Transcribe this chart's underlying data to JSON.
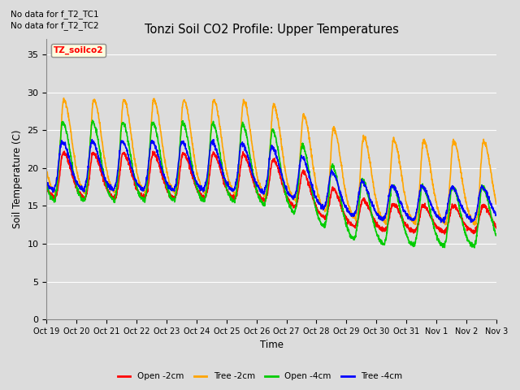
{
  "title": "Tonzi Soil CO2 Profile: Upper Temperatures",
  "ylabel": "Soil Temperature (C)",
  "xlabel": "Time",
  "top_annotations": [
    "No data for f_T2_TC1",
    "No data for f_T2_TC2"
  ],
  "legend_label": "TZ_soilco2",
  "ylim": [
    0,
    37
  ],
  "yticks": [
    0,
    5,
    10,
    15,
    20,
    25,
    30,
    35
  ],
  "xtick_labels": [
    "Oct 19",
    "Oct 20",
    "Oct 21",
    "Oct 22",
    "Oct 23",
    "Oct 24",
    "Oct 25",
    "Oct 26",
    "Oct 27",
    "Oct 28",
    "Oct 29",
    "Oct 30",
    "Oct 31",
    "Nov 1",
    "Nov 2",
    "Nov 3"
  ],
  "line_colors": {
    "open_2cm": "#FF0000",
    "tree_2cm": "#FFA500",
    "open_4cm": "#00CC00",
    "tree_4cm": "#0000FF"
  },
  "legend_entries": [
    "Open -2cm",
    "Tree -2cm",
    "Open -4cm",
    "Tree -4cm"
  ],
  "fig_bg": "#DCDCDC",
  "plot_bg": "#DCDCDC",
  "grid_color": "#FFFFFF",
  "n_days": 15,
  "points_per_day": 144
}
